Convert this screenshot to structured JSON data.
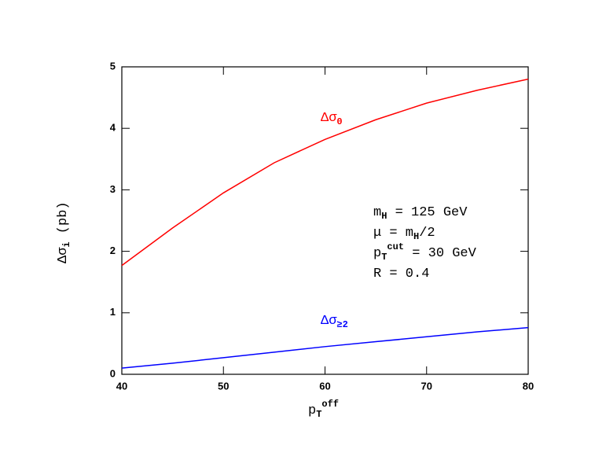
{
  "chart_data": {
    "type": "line",
    "x": [
      40,
      45,
      50,
      55,
      60,
      65,
      70,
      75,
      80
    ],
    "series": [
      {
        "label": [
          {
            "t": "Δσ"
          },
          {
            "t": "0",
            "s": "sub"
          }
        ],
        "color": "#ff0000",
        "values": [
          1.77,
          2.38,
          2.95,
          3.44,
          3.82,
          4.14,
          4.41,
          4.62,
          4.8
        ]
      },
      {
        "label": [
          {
            "t": "Δσ"
          },
          {
            "t": "≥2",
            "s": "sub"
          }
        ],
        "color": "#0000ff",
        "values": [
          0.1,
          0.18,
          0.27,
          0.36,
          0.45,
          0.53,
          0.61,
          0.69,
          0.76
        ]
      }
    ],
    "xlabel": [
      {
        "t": "p"
      },
      {
        "t": "T",
        "s": "sub"
      },
      {
        "t": "off",
        "s": "sup"
      }
    ],
    "ylabel": [
      {
        "t": "Δσ"
      },
      {
        "t": "i",
        "s": "sub"
      },
      {
        "t": " (pb)"
      }
    ],
    "annotation": [
      [
        {
          "t": "m"
        },
        {
          "t": "H",
          "s": "sub"
        },
        {
          "t": " = 125 GeV"
        }
      ],
      [
        {
          "t": "μ = m"
        },
        {
          "t": "H",
          "s": "sub"
        },
        {
          "t": "/2"
        }
      ],
      [
        {
          "t": "p"
        },
        {
          "t": "T",
          "s": "sub"
        },
        {
          "t": "cut",
          "s": "sup"
        },
        {
          "t": " = 30 GeV"
        }
      ],
      [
        {
          "t": "R = 0.4"
        }
      ]
    ],
    "xlim": [
      40,
      80
    ],
    "xticks": [
      40,
      50,
      60,
      70,
      80
    ],
    "ylim": [
      0,
      5
    ],
    "yticks": [
      0,
      1,
      2,
      3,
      4,
      5
    ]
  }
}
